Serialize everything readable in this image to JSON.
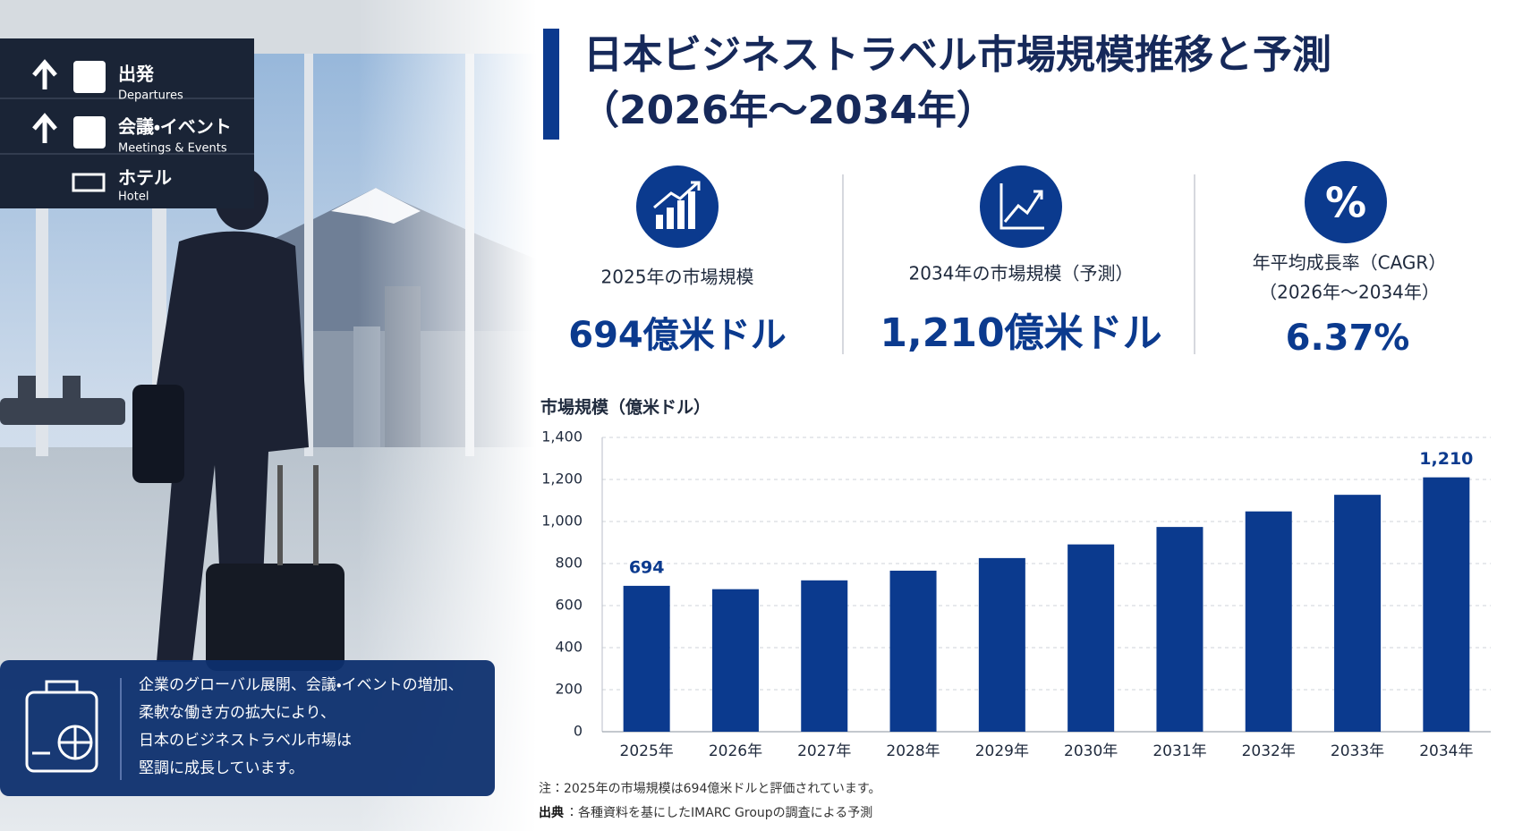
{
  "signage": [
    {
      "ja": "出発",
      "en": "Departures"
    },
    {
      "ja": "会議・イベント",
      "en": "Meetings & Events"
    },
    {
      "ja": "ホテル",
      "en": "Hotel"
    }
  ],
  "summary": [
    "企業のグローバル展開、会議・イベントの増加、",
    "柔軟な働き方の拡大により、",
    "日本のビジネストラベル市場は",
    "堅調に成長しています。"
  ],
  "header": {
    "title": [
      "日本ビジネストラベル市場規模推移と予測",
      "（2026年～2034年）"
    ]
  },
  "kpis": [
    {
      "label": [
        "2025年の市場規模"
      ],
      "value": "694億米ドル"
    },
    {
      "label": [
        "2034年の市場規模（予測）"
      ],
      "value": "1,210億米ドル"
    },
    {
      "icon": "%",
      "label": [
        "年平均成長率（CAGR）",
        "（2026年～2034年）"
      ],
      "value": "6.37%"
    }
  ],
  "chart_data": {
    "type": "bar",
    "y_label": "市場規模（億米ドル）",
    "categories": [
      "2025年",
      "2026年",
      "2027年",
      "2028年",
      "2029年",
      "2030年",
      "2031年",
      "2032年",
      "2033年",
      "2034年"
    ],
    "values": [
      694,
      678,
      720,
      766,
      826,
      891,
      974,
      1048,
      1127,
      1210
    ],
    "value_labels": [
      "694",
      null,
      null,
      null,
      null,
      null,
      null,
      null,
      null,
      "1,210"
    ],
    "color": "#0b3a8e",
    "ylim": [
      0,
      1400
    ],
    "yticks": [
      0,
      200,
      400,
      600,
      800,
      {
        "value": 1000,
        "label": "1,000"
      },
      {
        "value": 1200,
        "label": "1,200"
      },
      {
        "value": 1400,
        "label": "1,400"
      }
    ],
    "grid": true
  },
  "notes": {
    "note": "注：2025年の市場規模は694億米ドルと評価されています。",
    "source_label": "出典",
    "source": "：各種資料を基にしたIMARC Groupの調査による予測"
  }
}
